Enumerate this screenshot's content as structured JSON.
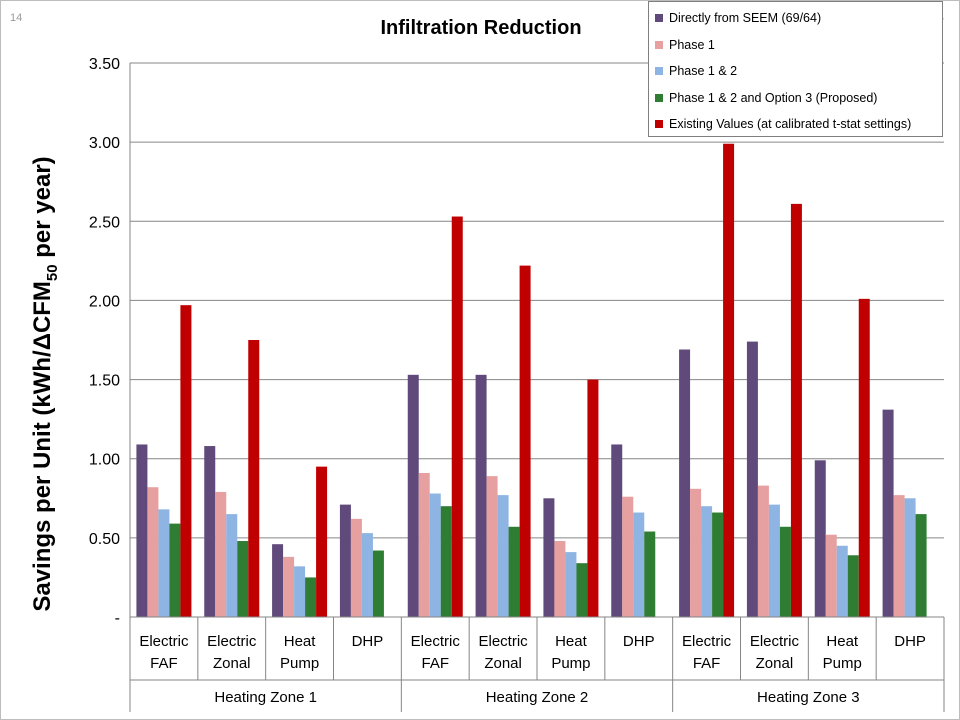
{
  "slide_number": "14",
  "colors": {
    "series": [
      "#604a7b",
      "#e6a0a0",
      "#8db4e2",
      "#2e7d32",
      "#c00000"
    ]
  },
  "chart_data": {
    "type": "bar",
    "title": "Infiltration Reduction",
    "ylabel": "Savings per Unit (kWh/ΔCFM",
    "ylabel_subscript": "50",
    "ylabel_suffix": " per year)",
    "ylim": [
      0,
      3.5
    ],
    "y_ticks": [
      {
        "value": 0,
        "label": "-"
      },
      {
        "value": 0.5,
        "label": "0.50"
      },
      {
        "value": 1.0,
        "label": "1.00"
      },
      {
        "value": 1.5,
        "label": "1.50"
      },
      {
        "value": 2.0,
        "label": "2.00"
      },
      {
        "value": 2.5,
        "label": "2.50"
      },
      {
        "value": 3.0,
        "label": "3.00"
      },
      {
        "value": 3.5,
        "label": "3.50"
      }
    ],
    "categories": [
      [
        "Electric",
        "FAF"
      ],
      [
        "Electric",
        "Zonal"
      ],
      [
        "Heat",
        "Pump"
      ],
      [
        "DHP"
      ],
      [
        "Electric",
        "FAF"
      ],
      [
        "Electric",
        "Zonal"
      ],
      [
        "Heat",
        "Pump"
      ],
      [
        "DHP"
      ],
      [
        "Electric",
        "FAF"
      ],
      [
        "Electric",
        "Zonal"
      ],
      [
        "Heat",
        "Pump"
      ],
      [
        "DHP"
      ]
    ],
    "groups": [
      {
        "label": "Heating Zone 1",
        "count": 4
      },
      {
        "label": "Heating Zone 2",
        "count": 4
      },
      {
        "label": "Heating Zone 3",
        "count": 4
      }
    ],
    "series": [
      {
        "name": "Directly from SEEM (69/64)",
        "values": [
          1.09,
          1.08,
          0.46,
          0.71,
          1.53,
          1.53,
          0.75,
          1.09,
          1.69,
          1.74,
          0.99,
          1.31
        ]
      },
      {
        "name": "Phase 1",
        "values": [
          0.82,
          0.79,
          0.38,
          0.62,
          0.91,
          0.89,
          0.48,
          0.76,
          0.81,
          0.83,
          0.52,
          0.77
        ]
      },
      {
        "name": "Phase 1 & 2",
        "values": [
          0.68,
          0.65,
          0.32,
          0.53,
          0.78,
          0.77,
          0.41,
          0.66,
          0.7,
          0.71,
          0.45,
          0.75
        ]
      },
      {
        "name": "Phase 1 & 2 and Option 3 (Proposed)",
        "values": [
          0.59,
          0.48,
          0.25,
          0.42,
          0.7,
          0.57,
          0.34,
          0.54,
          0.66,
          0.57,
          0.39,
          0.65
        ]
      },
      {
        "name": "Existing Values (at calibrated t-stat settings)",
        "values": [
          1.97,
          1.75,
          0.95,
          null,
          2.53,
          2.22,
          1.5,
          null,
          2.99,
          2.61,
          2.01,
          null
        ]
      }
    ],
    "grid": true,
    "legend_position": "top-right"
  }
}
